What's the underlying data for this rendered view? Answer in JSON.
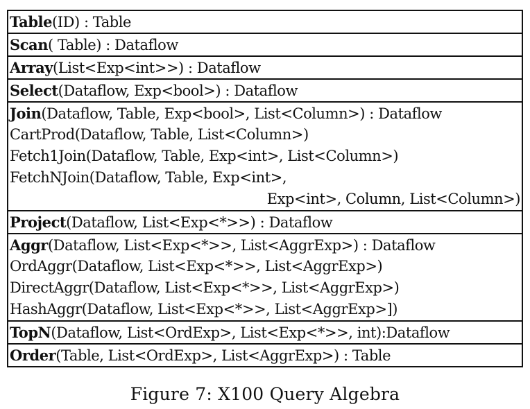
{
  "rows": [
    {
      "lines": [
        {
          "name": "Table",
          "rest": "(ID) : Table",
          "indent": false
        }
      ]
    },
    {
      "lines": [
        {
          "name": "Scan",
          "rest": "( Table) : Dataflow",
          "indent": false
        }
      ]
    },
    {
      "lines": [
        {
          "name": "Array",
          "rest": "(List<Exp<int>>) : Dataflow",
          "indent": false
        }
      ]
    },
    {
      "lines": [
        {
          "name": "Select",
          "rest": "(Dataflow, Exp<bool>) : Dataflow",
          "indent": false
        }
      ]
    },
    {
      "lines": [
        {
          "name": "Join",
          "rest": "(Dataflow, Table, Exp<bool>, List<Column>) : Dataflow",
          "indent": false
        },
        {
          "name": "",
          "rest": "CartProd(Dataflow, Table, List<Column>)",
          "indent": false
        },
        {
          "name": "",
          "rest": "Fetch1Join(Dataflow, Table, Exp<int>, List<Column>)",
          "indent": false
        },
        {
          "name": "",
          "rest": "FetchNJoin(Dataflow, Table, Exp<int>,",
          "indent": false
        },
        {
          "name": "",
          "rest": "Exp<int>, Column, List<Column>)",
          "indent": true
        }
      ]
    },
    {
      "lines": [
        {
          "name": "Project",
          "rest": "(Dataflow, List<Exp<*>>) : Dataflow",
          "indent": false
        }
      ]
    },
    {
      "lines": [
        {
          "name": "Aggr",
          "rest": "(Dataflow, List<Exp<*>>, List<AggrExp>) : Dataflow",
          "indent": false
        },
        {
          "name": "",
          "rest": "OrdAggr(Dataflow, List<Exp<*>>, List<AggrExp>)",
          "indent": false
        },
        {
          "name": "",
          "rest": "DirectAggr(Dataflow, List<Exp<*>>, List<AggrExp>)",
          "indent": false
        },
        {
          "name": "",
          "rest": "HashAggr(Dataflow, List<Exp<*>>, List<AggrExp>])",
          "indent": false
        }
      ]
    },
    {
      "lines": [
        {
          "name": "TopN",
          "rest": "(Dataflow, List<OrdExp>, List<Exp<*>>, int):Dataflow",
          "indent": false
        }
      ]
    },
    {
      "lines": [
        {
          "name": "Order",
          "rest": "(Table, List<OrdExp>, List<AggrExp>) : Table",
          "indent": false
        }
      ]
    }
  ],
  "caption": "Figure 7: X100 Query Algebra"
}
